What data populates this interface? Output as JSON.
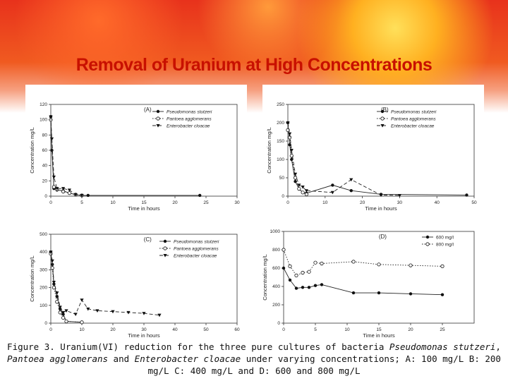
{
  "slide": {
    "title": "Removal of Uranium at High Concentrations"
  },
  "caption": {
    "p1": "Figure 3. Uranium(VI) reduction for the three pure cultures of bacteria ",
    "sp1": "Pseudomonas stutzeri",
    "p2": ", ",
    "sp2": "Pantoea agglomerans",
    "p3": " and ",
    "sp3": "Enterobacter cloacae",
    "p4": " under varying concentrations; A: 100 mg/L B: 200 mg/L C: 400 mg/L and D: 600 and 800 mg/L"
  },
  "chart_data": [
    {
      "type": "line",
      "panel": "(A)",
      "xlabel": "Time in hours",
      "ylabel": "Concentration mg/L",
      "xlim": [
        0,
        30
      ],
      "ylim": [
        0,
        120
      ],
      "xticks": [
        0,
        5,
        10,
        15,
        20,
        25,
        30
      ],
      "yticks": [
        0,
        20,
        40,
        60,
        80,
        100,
        120
      ],
      "legend_position": "top-right",
      "series": [
        {
          "name": "Pseudomonas stutzeri",
          "marker": "circle",
          "dash": "solid",
          "x": [
            0,
            0.17,
            0.5,
            1,
            2,
            3,
            4,
            5,
            6,
            24
          ],
          "y": [
            104,
            60,
            10,
            8,
            7,
            4,
            2,
            1,
            1,
            1
          ]
        },
        {
          "name": "Pantoea agglomerans",
          "marker": "circle-open",
          "dash": "dotted",
          "x": [
            0,
            0.5,
            1,
            2,
            3,
            4,
            5
          ],
          "y": [
            100,
            12,
            9,
            6,
            4,
            2,
            1
          ]
        },
        {
          "name": "Enterobacter cloacae",
          "marker": "triangle-down",
          "dash": "dashed",
          "x": [
            0,
            0.17,
            0.5,
            1,
            2,
            3,
            4,
            5
          ],
          "y": [
            104,
            75,
            25,
            10,
            10,
            8,
            2,
            1
          ]
        }
      ]
    },
    {
      "type": "line",
      "panel": "(B)",
      "xlabel": "Time in hours",
      "ylabel": "Concentration mg/L",
      "xlim": [
        0,
        50
      ],
      "ylim": [
        0,
        250
      ],
      "xticks": [
        0,
        10,
        20,
        30,
        40,
        50
      ],
      "yticks": [
        0,
        50,
        100,
        150,
        200,
        250
      ],
      "legend_position": "top-right",
      "series": [
        {
          "name": "Pseudomonas stutzeri",
          "marker": "circle",
          "dash": "solid",
          "x": [
            0,
            0.5,
            1,
            2,
            3,
            4,
            5,
            12,
            17,
            25,
            48
          ],
          "y": [
            200,
            140,
            100,
            40,
            20,
            10,
            8,
            30,
            15,
            5,
            3
          ]
        },
        {
          "name": "Pantoea agglomerans",
          "marker": "circle-open",
          "dash": "dotted",
          "x": [
            0,
            0.5,
            1,
            2,
            3,
            4,
            5
          ],
          "y": [
            180,
            160,
            110,
            50,
            20,
            10,
            5
          ]
        },
        {
          "name": "Enterobacter cloacae",
          "marker": "triangle-down",
          "dash": "dashed",
          "x": [
            0,
            0.5,
            1,
            2,
            3,
            4,
            5,
            12,
            17,
            25,
            30
          ],
          "y": [
            200,
            170,
            125,
            60,
            30,
            25,
            15,
            10,
            45,
            3,
            2
          ]
        }
      ]
    },
    {
      "type": "line",
      "panel": "(C)",
      "xlabel": "Time in hours",
      "ylabel": "Concentration mg/L",
      "xlim": [
        0,
        60
      ],
      "ylim": [
        0,
        500
      ],
      "xticks": [
        0,
        10,
        20,
        30,
        40,
        50,
        60
      ],
      "yticks": [
        0,
        100,
        200,
        300,
        400,
        500
      ],
      "legend_position": "top-right",
      "series": [
        {
          "name": "Pseudomonas stutzeri",
          "marker": "circle",
          "dash": "solid",
          "x": [
            0,
            0.5,
            1,
            2,
            3,
            4,
            5,
            10
          ],
          "y": [
            400,
            330,
            220,
            150,
            80,
            50,
            10,
            5
          ]
        },
        {
          "name": "Pantoea agglomerans",
          "marker": "circle-open",
          "dash": "dotted",
          "x": [
            0,
            0.5,
            1,
            2,
            3,
            4,
            5,
            10
          ],
          "y": [
            390,
            310,
            200,
            120,
            60,
            30,
            10,
            5
          ]
        },
        {
          "name": "Enterobacter cloacae",
          "marker": "triangle-down",
          "dash": "dashed",
          "x": [
            0,
            0.5,
            1,
            2,
            3,
            4,
            5,
            8,
            10,
            12,
            15,
            20,
            25,
            30,
            35
          ],
          "y": [
            400,
            350,
            230,
            170,
            90,
            60,
            70,
            50,
            130,
            80,
            70,
            65,
            60,
            55,
            45
          ]
        }
      ]
    },
    {
      "type": "line",
      "panel": "(D)",
      "xlabel": "Time in hours",
      "ylabel": "Concentration mg/L",
      "xlim": [
        0,
        30
      ],
      "ylim": [
        0,
        1000
      ],
      "xticks": [
        0,
        5,
        10,
        15,
        20,
        25
      ],
      "yticks": [
        0,
        200,
        400,
        600,
        800,
        1000
      ],
      "legend_position": "top-right",
      "series": [
        {
          "name": "600 mg/l",
          "marker": "circle",
          "dash": "solid",
          "x": [
            0,
            1,
            2,
            3,
            4,
            5,
            6,
            11,
            15,
            20,
            25
          ],
          "y": [
            600,
            470,
            380,
            390,
            390,
            410,
            420,
            330,
            330,
            320,
            310
          ]
        },
        {
          "name": "800 mg/l",
          "marker": "circle-open",
          "dash": "dotted",
          "x": [
            0,
            1,
            2,
            3,
            4,
            5,
            6,
            11,
            15,
            20,
            25
          ],
          "y": [
            800,
            620,
            520,
            550,
            560,
            660,
            650,
            670,
            640,
            630,
            620
          ]
        }
      ]
    }
  ]
}
